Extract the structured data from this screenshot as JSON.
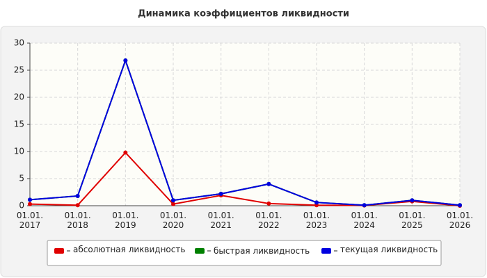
{
  "chart_data": {
    "type": "line",
    "title": "Динамика коэффициентов ликвидности",
    "categories": [
      "01.01. 2017",
      "01.01. 2018",
      "01.01. 2019",
      "01.01. 2020",
      "01.01. 2021",
      "01.01. 2022",
      "01.01. 2023",
      "01.01. 2024",
      "01.01. 2025",
      "01.01. 2026"
    ],
    "series": [
      {
        "name": "абсолютная ликвидность",
        "color": "#e00000",
        "values": [
          0.3,
          0.1,
          9.8,
          0.3,
          1.9,
          0.4,
          0.1,
          0.05,
          0.8,
          0.0
        ]
      },
      {
        "name": "быстрая ликвидность",
        "color": "#008000",
        "values": [
          1.1,
          1.8,
          26.8,
          1.0,
          2.2,
          4.0,
          0.6,
          0.1,
          1.0,
          0.1
        ]
      },
      {
        "name": "текущая ликвидность",
        "color": "#0000e0",
        "values": [
          1.1,
          1.8,
          26.8,
          1.0,
          2.2,
          4.0,
          0.6,
          0.1,
          1.0,
          0.1
        ]
      }
    ],
    "ylim": [
      0,
      30
    ],
    "yticks": [
      0,
      5,
      10,
      15,
      20,
      25,
      30
    ],
    "grid": true,
    "legend": "bottom"
  }
}
